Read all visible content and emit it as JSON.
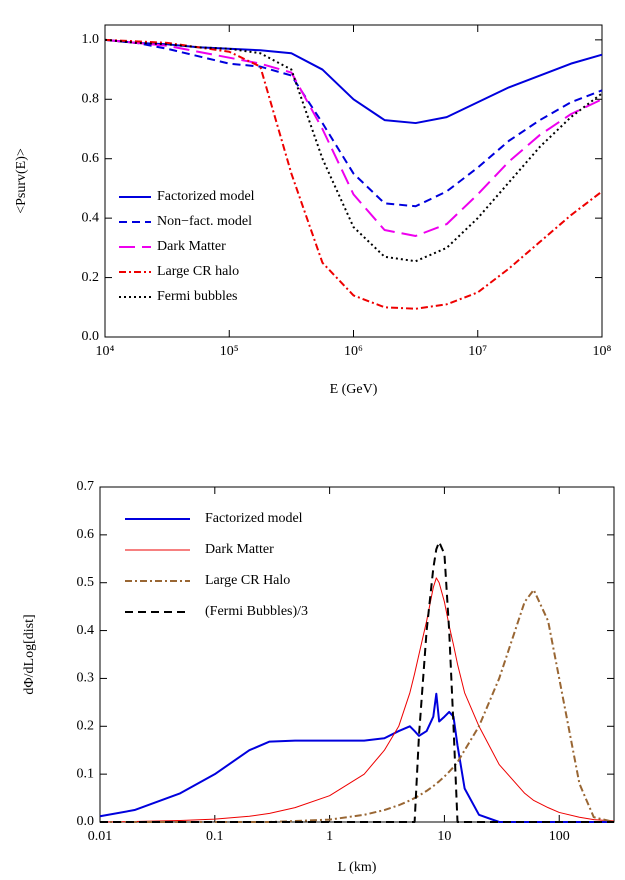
{
  "chart_data": [
    {
      "type": "line",
      "xlabel": "E (GeV)",
      "ylabel": "<Psurv(E)>",
      "xscale": "log",
      "legend": "lower left",
      "xlim": [
        10000,
        100000000
      ],
      "xticks": [
        {
          "value": 10000,
          "label": "10⁴"
        },
        {
          "value": 100000,
          "label": "10⁵"
        },
        {
          "value": 1000000,
          "label": "10⁶"
        },
        {
          "value": 10000000,
          "label": "10⁷"
        },
        {
          "value": 100000000,
          "label": "10⁸"
        }
      ],
      "ylim": [
        0,
        1.05
      ],
      "yticks": [
        {
          "value": 0,
          "label": "0.0"
        },
        0.2,
        0.4,
        0.6,
        0.8,
        {
          "value": 1,
          "label": "1.0"
        }
      ],
      "x": [
        10000,
        17783,
        31623,
        56234,
        100000,
        177828,
        316228,
        562341,
        1000000,
        1778279,
        3162278,
        5623413,
        10000000,
        17782794,
        31622777,
        56234133,
        100000000
      ],
      "series": [
        {
          "name": "Factorized model",
          "color": "#0000dd",
          "dash": "solid",
          "line_width": 2,
          "values": [
            1.0,
            0.99,
            0.985,
            0.975,
            0.97,
            0.965,
            0.955,
            0.9,
            0.8,
            0.73,
            0.72,
            0.74,
            0.79,
            0.84,
            0.88,
            0.92,
            0.95
          ]
        },
        {
          "name": "Non−fact. model",
          "color": "#0000dd",
          "dash": "dashed",
          "line_width": 2,
          "values": [
            1.0,
            0.99,
            0.97,
            0.945,
            0.92,
            0.91,
            0.88,
            0.72,
            0.55,
            0.45,
            0.44,
            0.49,
            0.57,
            0.66,
            0.73,
            0.79,
            0.83
          ]
        },
        {
          "name": "Dark Matter",
          "color": "#ee00ee",
          "dash": "longdash",
          "line_width": 2,
          "values": [
            1.0,
            0.99,
            0.98,
            0.96,
            0.94,
            0.92,
            0.89,
            0.7,
            0.48,
            0.36,
            0.34,
            0.38,
            0.48,
            0.59,
            0.68,
            0.75,
            0.8
          ]
        },
        {
          "name": "Large CR  halo",
          "color": "#ee0000",
          "dash": "dashdot",
          "line_width": 2,
          "values": [
            1.0,
            0.995,
            0.99,
            0.975,
            0.96,
            0.91,
            0.55,
            0.25,
            0.14,
            0.1,
            0.095,
            0.11,
            0.15,
            0.23,
            0.32,
            0.41,
            0.49
          ]
        },
        {
          "name": "Fermi bubbles",
          "color": "#000000",
          "dash": "dotted",
          "line_width": 2,
          "values": [
            1.0,
            0.99,
            0.985,
            0.975,
            0.97,
            0.955,
            0.9,
            0.6,
            0.37,
            0.27,
            0.255,
            0.3,
            0.4,
            0.52,
            0.64,
            0.74,
            0.82
          ]
        }
      ]
    },
    {
      "type": "line",
      "xlabel": "L  (km)",
      "ylabel": "dΦ/dLog[dist]",
      "xscale": "log",
      "legend": "upper left",
      "xlim": [
        0.01,
        300
      ],
      "xticks": [
        0.01,
        0.1,
        1,
        10,
        100
      ],
      "ylim": [
        0,
        0.7
      ],
      "yticks": [
        {
          "value": 0,
          "label": "0.0"
        },
        0.1,
        0.2,
        0.3,
        0.4,
        0.5,
        0.6,
        0.7
      ],
      "x": [
        0.01,
        0.02,
        0.05,
        0.1,
        0.2,
        0.3,
        0.5,
        1,
        2,
        3,
        4,
        5,
        5.5,
        6,
        7,
        8,
        8.5,
        9,
        10,
        11,
        12,
        13,
        15,
        20,
        30,
        50,
        60,
        80,
        100,
        150,
        200,
        300
      ],
      "series": [
        {
          "name": "Factorized model",
          "color": "#0000dd",
          "dash": "solid",
          "line_width": 2,
          "values": [
            0.012,
            0.025,
            0.06,
            0.1,
            0.15,
            0.168,
            0.17,
            0.17,
            0.17,
            0.175,
            0.19,
            0.2,
            0.19,
            0.18,
            0.19,
            0.22,
            0.268,
            0.21,
            0.22,
            0.23,
            0.22,
            0.16,
            0.07,
            0.015,
            0,
            0,
            0,
            0,
            0,
            0,
            0,
            0
          ]
        },
        {
          "name": "Dark Matter",
          "color": "#ee0000",
          "dash": "solid",
          "line_width": 1,
          "values": [
            0,
            0.001,
            0.003,
            0.006,
            0.012,
            0.018,
            0.03,
            0.055,
            0.1,
            0.15,
            0.2,
            0.27,
            0.31,
            0.35,
            0.42,
            0.49,
            0.51,
            0.5,
            0.46,
            0.41,
            0.37,
            0.33,
            0.27,
            0.2,
            0.12,
            0.06,
            0.045,
            0.03,
            0.02,
            0.01,
            0.005,
            0.002
          ]
        },
        {
          "name": "Large CR Halo",
          "color": "#996633",
          "dash": "dashdot",
          "line_width": 2,
          "values": [
            0,
            0,
            0,
            0,
            0,
            0,
            0.002,
            0.005,
            0.015,
            0.025,
            0.035,
            0.045,
            0.05,
            0.055,
            0.065,
            0.075,
            0.08,
            0.085,
            0.095,
            0.105,
            0.115,
            0.125,
            0.15,
            0.2,
            0.3,
            0.46,
            0.485,
            0.42,
            0.3,
            0.08,
            0.01,
            0
          ]
        },
        {
          "name": "(Fermi Bubbles)/3",
          "color": "#000000",
          "dash": "dashed",
          "line_width": 2,
          "values": [
            0,
            0,
            0,
            0,
            0,
            0,
            0,
            0,
            0,
            0,
            0,
            0,
            0,
            0.18,
            0.4,
            0.53,
            0.57,
            0.585,
            0.56,
            0.4,
            0.2,
            0,
            0,
            0,
            0,
            0,
            0,
            0,
            0,
            0,
            0,
            0
          ]
        }
      ]
    }
  ]
}
